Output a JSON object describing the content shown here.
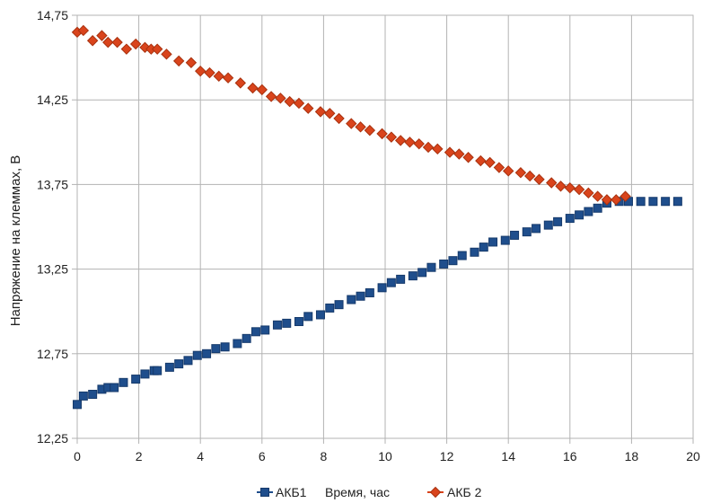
{
  "chart_data": {
    "type": "scatter",
    "title": "",
    "xlabel": "Время, час",
    "ylabel": "Напряжение на клеммах, В",
    "xlim": [
      0,
      20
    ],
    "ylim": [
      12.25,
      14.75
    ],
    "xticks": [
      "0",
      "2",
      "4",
      "6",
      "8",
      "10",
      "12",
      "14",
      "16",
      "18",
      "20"
    ],
    "yticks": [
      "12,25",
      "12,75",
      "13,25",
      "13,75",
      "14,25",
      "14,75"
    ],
    "grid": true,
    "legend_position": "bottom",
    "series": [
      {
        "name": "АКБ1",
        "color": "#1f4e8c",
        "marker": "square",
        "points": [
          [
            0.0,
            12.45
          ],
          [
            0.2,
            12.5
          ],
          [
            0.5,
            12.51
          ],
          [
            0.8,
            12.54
          ],
          [
            1.0,
            12.55
          ],
          [
            1.2,
            12.55
          ],
          [
            1.5,
            12.58
          ],
          [
            1.9,
            12.6
          ],
          [
            2.2,
            12.63
          ],
          [
            2.5,
            12.65
          ],
          [
            2.6,
            12.65
          ],
          [
            3.0,
            12.67
          ],
          [
            3.3,
            12.69
          ],
          [
            3.6,
            12.71
          ],
          [
            3.9,
            12.74
          ],
          [
            4.2,
            12.75
          ],
          [
            4.5,
            12.78
          ],
          [
            4.8,
            12.79
          ],
          [
            5.2,
            12.81
          ],
          [
            5.5,
            12.84
          ],
          [
            5.8,
            12.88
          ],
          [
            6.1,
            12.89
          ],
          [
            6.5,
            12.92
          ],
          [
            6.8,
            12.93
          ],
          [
            7.2,
            12.94
          ],
          [
            7.5,
            12.97
          ],
          [
            7.9,
            12.98
          ],
          [
            8.2,
            13.02
          ],
          [
            8.5,
            13.04
          ],
          [
            8.9,
            13.07
          ],
          [
            9.2,
            13.09
          ],
          [
            9.5,
            13.11
          ],
          [
            9.9,
            13.14
          ],
          [
            10.2,
            13.17
          ],
          [
            10.5,
            13.19
          ],
          [
            10.9,
            13.21
          ],
          [
            11.2,
            13.23
          ],
          [
            11.5,
            13.26
          ],
          [
            11.9,
            13.28
          ],
          [
            12.2,
            13.3
          ],
          [
            12.5,
            13.33
          ],
          [
            12.9,
            13.35
          ],
          [
            13.2,
            13.38
          ],
          [
            13.5,
            13.41
          ],
          [
            13.9,
            13.42
          ],
          [
            14.2,
            13.45
          ],
          [
            14.6,
            13.47
          ],
          [
            14.9,
            13.49
          ],
          [
            15.3,
            13.51
          ],
          [
            15.6,
            13.53
          ],
          [
            16.0,
            13.55
          ],
          [
            16.3,
            13.57
          ],
          [
            16.6,
            13.59
          ],
          [
            16.9,
            13.61
          ],
          [
            17.2,
            13.64
          ],
          [
            17.6,
            13.65
          ],
          [
            17.9,
            13.65
          ],
          [
            18.3,
            13.65
          ],
          [
            18.7,
            13.65
          ],
          [
            19.1,
            13.65
          ],
          [
            19.5,
            13.65
          ]
        ]
      },
      {
        "name": "АКБ 2",
        "color": "#d9441c",
        "marker": "diamond",
        "points": [
          [
            0.0,
            14.65
          ],
          [
            0.2,
            14.66
          ],
          [
            0.5,
            14.6
          ],
          [
            0.8,
            14.63
          ],
          [
            1.0,
            14.59
          ],
          [
            1.3,
            14.59
          ],
          [
            1.6,
            14.55
          ],
          [
            1.9,
            14.58
          ],
          [
            2.2,
            14.56
          ],
          [
            2.4,
            14.55
          ],
          [
            2.6,
            14.55
          ],
          [
            2.9,
            14.52
          ],
          [
            3.3,
            14.48
          ],
          [
            3.7,
            14.47
          ],
          [
            4.0,
            14.42
          ],
          [
            4.3,
            14.41
          ],
          [
            4.6,
            14.39
          ],
          [
            4.9,
            14.38
          ],
          [
            5.3,
            14.35
          ],
          [
            5.7,
            14.32
          ],
          [
            6.0,
            14.31
          ],
          [
            6.3,
            14.27
          ],
          [
            6.6,
            14.26
          ],
          [
            6.9,
            14.24
          ],
          [
            7.2,
            14.23
          ],
          [
            7.5,
            14.2
          ],
          [
            7.9,
            14.18
          ],
          [
            8.2,
            14.17
          ],
          [
            8.5,
            14.14
          ],
          [
            8.9,
            14.11
          ],
          [
            9.2,
            14.09
          ],
          [
            9.5,
            14.07
          ],
          [
            9.9,
            14.05
          ],
          [
            10.2,
            14.03
          ],
          [
            10.5,
            14.01
          ],
          [
            10.8,
            14.0
          ],
          [
            11.1,
            13.99
          ],
          [
            11.4,
            13.97
          ],
          [
            11.7,
            13.96
          ],
          [
            12.1,
            13.94
          ],
          [
            12.4,
            13.93
          ],
          [
            12.7,
            13.91
          ],
          [
            13.1,
            13.89
          ],
          [
            13.4,
            13.88
          ],
          [
            13.7,
            13.85
          ],
          [
            14.0,
            13.83
          ],
          [
            14.4,
            13.82
          ],
          [
            14.7,
            13.8
          ],
          [
            15.0,
            13.78
          ],
          [
            15.4,
            13.76
          ],
          [
            15.7,
            13.74
          ],
          [
            16.0,
            13.73
          ],
          [
            16.3,
            13.72
          ],
          [
            16.6,
            13.7
          ],
          [
            16.9,
            13.68
          ],
          [
            17.2,
            13.66
          ],
          [
            17.5,
            13.66
          ],
          [
            17.8,
            13.68
          ]
        ]
      }
    ]
  }
}
